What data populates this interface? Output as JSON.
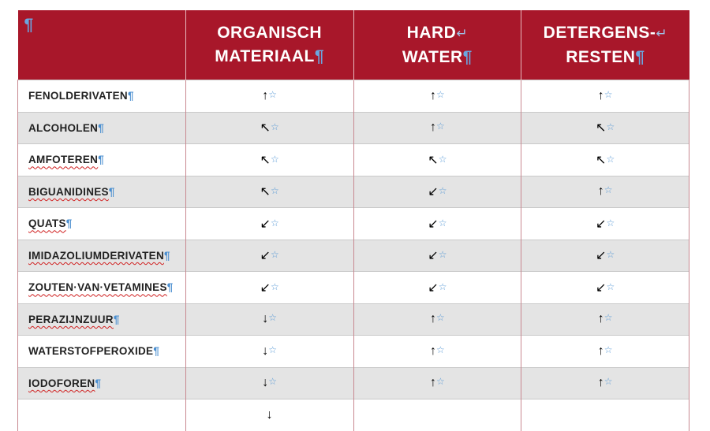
{
  "header": {
    "corner_mark": "¶",
    "columns": [
      {
        "line1": "ORGANISCH",
        "line2": "MATERIAAL",
        "break1": "",
        "mark": "¶"
      },
      {
        "line1": "HARD",
        "line2": "WATER",
        "break1": "↵",
        "mark": "¶"
      },
      {
        "line1": "DETERGENS-",
        "line2": "RESTEN",
        "break1": "↵",
        "mark": "¶"
      }
    ]
  },
  "rows": [
    {
      "name": "FENOLDERIVATEN",
      "values": [
        "↑",
        "↑",
        "↑"
      ],
      "spell_error": false
    },
    {
      "name": "ALCOHOLEN",
      "values": [
        "↖",
        "↑",
        "↖"
      ],
      "spell_error": false
    },
    {
      "name": "AMFOTEREN",
      "values": [
        "↖",
        "↖",
        "↖"
      ],
      "spell_error": true
    },
    {
      "name": "BIGUANIDINES",
      "values": [
        "↖",
        "↙",
        "↑"
      ],
      "spell_error": true
    },
    {
      "name": "QUATS",
      "values": [
        "↙",
        "↙",
        "↙"
      ],
      "spell_error": true
    },
    {
      "name": "IMIDAZOLIUMDERIVATEN",
      "values": [
        "↙",
        "↙",
        "↙"
      ],
      "spell_error": true
    },
    {
      "name": "ZOUTEN·VAN·VETAMINES",
      "values": [
        "↙",
        "↙",
        "↙"
      ],
      "spell_error": true
    },
    {
      "name": "PERAZIJNZUUR",
      "values": [
        "↓",
        "↑",
        "↑"
      ],
      "spell_error": true
    },
    {
      "name": "WATERSTOFPEROXIDE",
      "values": [
        "↓",
        "↑",
        "↑"
      ],
      "spell_error": false
    },
    {
      "name": "IODOFOREN",
      "values": [
        "↓",
        "↑",
        "↑"
      ],
      "spell_error": true
    },
    {
      "name": "",
      "values": [
        "↓",
        "",
        ""
      ],
      "spell_error": false
    }
  ],
  "marks": {
    "paragraph": "¶",
    "cell_marker": "☆"
  },
  "colors": {
    "header_bg": "#a8172a",
    "row_alt": "#e4e4e4",
    "pilcrow": "#4b8fd0"
  }
}
